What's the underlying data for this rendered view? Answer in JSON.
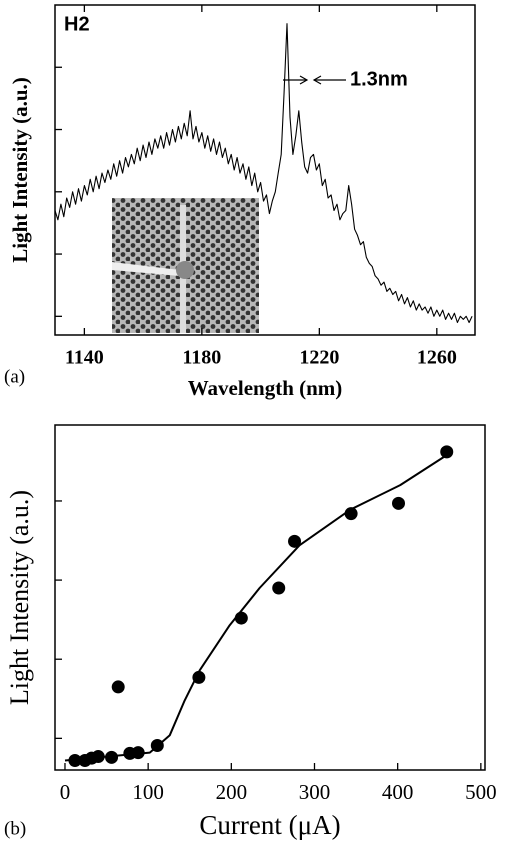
{
  "chart_data": [
    {
      "type": "line",
      "label": "(a)",
      "xlabel": "Wavelength (nm)",
      "ylabel": "Light Intensity (a.u.)",
      "annotations": [
        "H2",
        "1.3nm"
      ],
      "xlim": [
        1130,
        1273
      ],
      "xticks": [
        1140,
        1180,
        1220,
        1260
      ],
      "ylim": [
        0.7,
        6.0
      ],
      "yticks": [
        1,
        2,
        3,
        4,
        5
      ],
      "series": [
        {
          "color": "#000000",
          "x": [
            1130,
            1131,
            1132,
            1133,
            1134,
            1135,
            1136,
            1137,
            1138,
            1139,
            1140,
            1141,
            1142,
            1143,
            1144,
            1145,
            1146,
            1147,
            1148,
            1149,
            1150,
            1151,
            1152,
            1153,
            1154,
            1155,
            1156,
            1157,
            1158,
            1159,
            1160,
            1161,
            1162,
            1163,
            1164,
            1165,
            1166,
            1167,
            1168,
            1169,
            1170,
            1171,
            1172,
            1173,
            1174,
            1175,
            1176,
            1177,
            1178,
            1179,
            1180,
            1181,
            1182,
            1183,
            1184,
            1185,
            1186,
            1187,
            1188,
            1189,
            1190,
            1191,
            1192,
            1193,
            1194,
            1195,
            1196,
            1197,
            1198,
            1199,
            1200,
            1201,
            1202,
            1203,
            1204,
            1205,
            1206,
            1207,
            1208,
            1209,
            1210,
            1211,
            1212,
            1213,
            1214,
            1215,
            1216,
            1217,
            1218,
            1219,
            1220,
            1221,
            1222,
            1223,
            1224,
            1225,
            1226,
            1227,
            1228,
            1229,
            1230,
            1231,
            1232,
            1233,
            1234,
            1235,
            1236,
            1237,
            1238,
            1239,
            1240,
            1241,
            1242,
            1243,
            1244,
            1245,
            1246,
            1247,
            1248,
            1249,
            1250,
            1251,
            1252,
            1253,
            1254,
            1255,
            1256,
            1257,
            1258,
            1259,
            1260,
            1261,
            1262,
            1263,
            1264,
            1265,
            1266,
            1267,
            1268,
            1269,
            1270,
            1271,
            1272
          ],
          "values": [
            2.7,
            2.55,
            2.8,
            2.6,
            2.9,
            2.75,
            3.0,
            2.8,
            3.05,
            2.85,
            3.1,
            2.95,
            3.2,
            3.0,
            3.25,
            3.05,
            3.3,
            3.15,
            3.35,
            3.2,
            3.45,
            3.25,
            3.5,
            3.3,
            3.55,
            3.4,
            3.6,
            3.45,
            3.7,
            3.5,
            3.75,
            3.55,
            3.8,
            3.6,
            3.85,
            3.7,
            3.9,
            3.7,
            3.95,
            3.75,
            4.0,
            3.8,
            4.05,
            3.85,
            4.1,
            3.9,
            4.3,
            3.85,
            4.05,
            3.8,
            3.95,
            3.7,
            3.9,
            3.65,
            3.85,
            3.6,
            3.8,
            3.55,
            3.7,
            3.45,
            3.6,
            3.35,
            3.55,
            3.3,
            3.45,
            3.2,
            3.4,
            3.1,
            3.3,
            3.0,
            3.15,
            2.85,
            2.95,
            2.65,
            2.85,
            3.0,
            3.3,
            3.6,
            4.6,
            5.7,
            4.2,
            3.6,
            3.9,
            4.3,
            3.8,
            3.4,
            3.3,
            3.55,
            3.6,
            3.35,
            3.45,
            3.1,
            3.2,
            2.9,
            2.95,
            2.7,
            2.8,
            2.55,
            2.65,
            2.7,
            3.1,
            2.8,
            2.4,
            2.3,
            2.15,
            2.2,
            1.95,
            1.85,
            1.8,
            1.65,
            1.6,
            1.5,
            1.55,
            1.4,
            1.45,
            1.35,
            1.4,
            1.25,
            1.35,
            1.2,
            1.3,
            1.15,
            1.25,
            1.1,
            1.2,
            1.1,
            1.15,
            1.05,
            1.15,
            1.0,
            1.1,
            1.0,
            1.1,
            0.95,
            1.05,
            0.95,
            1.05,
            0.9,
            1.0,
            0.95,
            1.0,
            0.9,
            1.0
          ]
        }
      ]
    },
    {
      "type": "scatter",
      "label": "(b)",
      "xlabel": "Current (μA)",
      "ylabel": "Light Intensity (a.u.)",
      "xlim": [
        -12,
        505
      ],
      "xticks": [
        0,
        100,
        200,
        300,
        400,
        500
      ],
      "ylim": [
        0.6,
        4.96
      ],
      "yticks": [
        1,
        2,
        3,
        4
      ],
      "series": [
        {
          "type": "scatter",
          "color": "#000000",
          "x": [
            12,
            24,
            32,
            40,
            56,
            64,
            78,
            88,
            111,
            161,
            212,
            257,
            276,
            344,
            401,
            459
          ],
          "values": [
            0.72,
            0.72,
            0.75,
            0.77,
            0.76,
            1.65,
            0.81,
            0.82,
            0.91,
            1.77,
            2.52,
            2.9,
            3.49,
            3.84,
            3.97,
            4.62
          ]
        },
        {
          "type": "line",
          "color": "#000000",
          "x": [
            0,
            102,
            126,
            144,
            162,
            198,
            234,
            282,
            343,
            403,
            459
          ],
          "values": [
            0.72,
            0.82,
            1.04,
            1.48,
            1.86,
            2.43,
            2.9,
            3.44,
            3.89,
            4.2,
            4.58
          ]
        }
      ]
    }
  ]
}
